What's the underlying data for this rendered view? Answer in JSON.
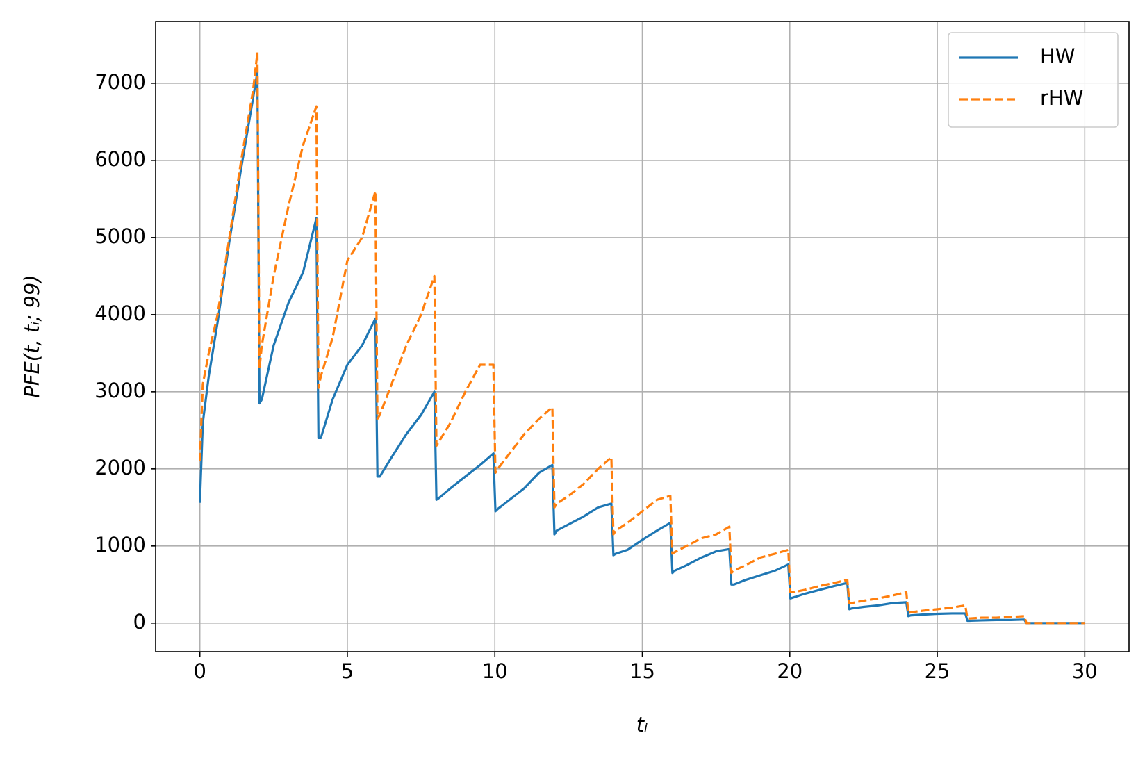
{
  "chart_data": {
    "type": "line",
    "xlabel": "tᵢ",
    "ylabel": "PFE(t, tᵢ; 99)",
    "x": [
      0,
      0.1,
      0.3,
      0.6,
      1,
      1.4,
      1.8,
      1.95,
      2.02,
      2.1,
      2.5,
      3,
      3.5,
      3.95,
      4.02,
      4.1,
      4.5,
      5,
      5.5,
      5.95,
      6.02,
      6.1,
      6.5,
      7,
      7.5,
      7.95,
      8.02,
      8.1,
      8.5,
      9,
      9.5,
      9.95,
      10.02,
      10.1,
      10.5,
      11,
      11.5,
      11.95,
      12.02,
      12.1,
      12.5,
      13,
      13.5,
      13.95,
      14.02,
      14.1,
      14.5,
      15,
      15.5,
      15.95,
      16.02,
      16.1,
      16.5,
      17,
      17.5,
      17.95,
      18.02,
      18.1,
      18.5,
      19,
      19.5,
      19.95,
      20.02,
      20.1,
      20.5,
      21,
      21.5,
      21.95,
      22.02,
      22.1,
      22.5,
      23,
      23.5,
      23.95,
      24.02,
      24.1,
      24.5,
      25,
      25.5,
      25.95,
      26.02,
      26.1,
      26.5,
      27,
      27.5,
      27.95,
      28.02,
      28.1,
      28.5,
      29,
      29.5,
      30
    ],
    "series": [
      {
        "name": "HW",
        "color": "#1f77b4",
        "style": "solid",
        "values": [
          1560,
          2600,
          3200,
          3900,
          4950,
          5900,
          6800,
          7150,
          2850,
          2900,
          3600,
          4150,
          4550,
          5250,
          2400,
          2400,
          2900,
          3350,
          3600,
          3950,
          1900,
          1900,
          2150,
          2450,
          2700,
          3000,
          1600,
          1620,
          1750,
          1900,
          2050,
          2200,
          1450,
          1480,
          1600,
          1750,
          1950,
          2050,
          1150,
          1200,
          1280,
          1380,
          1500,
          1550,
          880,
          900,
          950,
          1080,
          1200,
          1300,
          650,
          680,
          750,
          850,
          930,
          960,
          500,
          500,
          560,
          620,
          680,
          760,
          320,
          330,
          380,
          430,
          480,
          520,
          180,
          190,
          210,
          230,
          260,
          270,
          90,
          100,
          110,
          120,
          125,
          125,
          30,
          30,
          35,
          40,
          40,
          45,
          0,
          0,
          0,
          0,
          0,
          0
        ]
      },
      {
        "name": "rHW",
        "color": "#ff7f0e",
        "style": "dashed",
        "values": [
          2100,
          3100,
          3500,
          4000,
          5000,
          6000,
          6900,
          7400,
          3300,
          3600,
          4500,
          5400,
          6200,
          6700,
          3050,
          3200,
          3700,
          4700,
          5000,
          5600,
          2650,
          2700,
          3100,
          3600,
          4000,
          4500,
          2300,
          2350,
          2600,
          3000,
          3350,
          3350,
          1950,
          2000,
          2200,
          2450,
          2650,
          2800,
          1500,
          1550,
          1650,
          1800,
          2000,
          2150,
          1150,
          1200,
          1300,
          1450,
          1600,
          1650,
          900,
          920,
          1000,
          1100,
          1150,
          1250,
          650,
          680,
          750,
          850,
          900,
          950,
          400,
          400,
          430,
          480,
          520,
          560,
          260,
          260,
          290,
          320,
          360,
          400,
          130,
          140,
          160,
          180,
          200,
          230,
          60,
          60,
          70,
          70,
          80,
          90,
          0,
          0,
          0,
          0,
          0,
          0
        ]
      }
    ],
    "xlim": [
      -1.5,
      31.5
    ],
    "xticks": [
      0,
      5,
      10,
      15,
      20,
      25,
      30
    ],
    "ylim": [
      -371,
      7801
    ],
    "yticks": [
      0,
      1000,
      2000,
      3000,
      4000,
      5000,
      6000,
      7000
    ],
    "grid": true,
    "legend": "upper right"
  }
}
